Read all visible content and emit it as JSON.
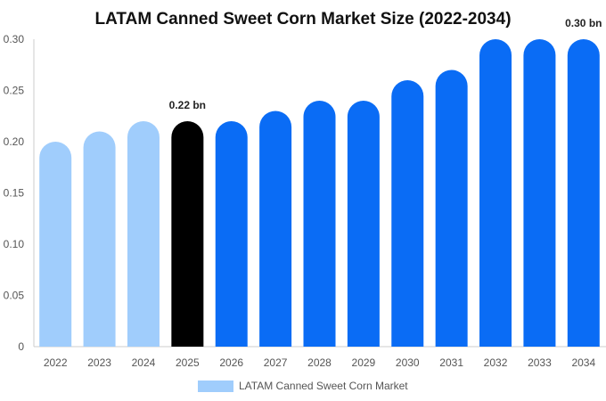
{
  "chart_data": {
    "type": "bar",
    "title": "LATAM Canned Sweet Corn Market Size (2022-2034)",
    "xlabel": "",
    "ylabel": "",
    "categories": [
      "2022",
      "2023",
      "2024",
      "2025",
      "2026",
      "2027",
      "2028",
      "2029",
      "2030",
      "2031",
      "2032",
      "2033",
      "2034"
    ],
    "series": [
      {
        "name": "LATAM Canned Sweet Corn Market",
        "values": [
          0.2,
          0.21,
          0.22,
          0.22,
          0.22,
          0.23,
          0.24,
          0.24,
          0.26,
          0.27,
          0.3,
          0.3,
          0.3
        ]
      }
    ],
    "bar_colors": [
      "#a0cdfc",
      "#a0cdfc",
      "#a0cdfc",
      "#000000",
      "#0a6cf5",
      "#0a6cf5",
      "#0a6cf5",
      "#0a6cf5",
      "#0a6cf5",
      "#0a6cf5",
      "#0a6cf5",
      "#0a6cf5",
      "#0a6cf5"
    ],
    "legend_color": "#a0cdfc",
    "ylim": [
      0,
      0.3
    ],
    "yticks": [
      "0",
      "0.05",
      "0.10",
      "0.15",
      "0.20",
      "0.25",
      "0.30"
    ],
    "ytick_values": [
      0,
      0.05,
      0.1,
      0.15,
      0.2,
      0.25,
      0.3
    ],
    "data_labels": [
      {
        "category": "2025",
        "text": "0.22 bn"
      },
      {
        "category": "2034",
        "text": "0.30 bn"
      }
    ],
    "grid": false,
    "legend_position": "bottom-center"
  }
}
